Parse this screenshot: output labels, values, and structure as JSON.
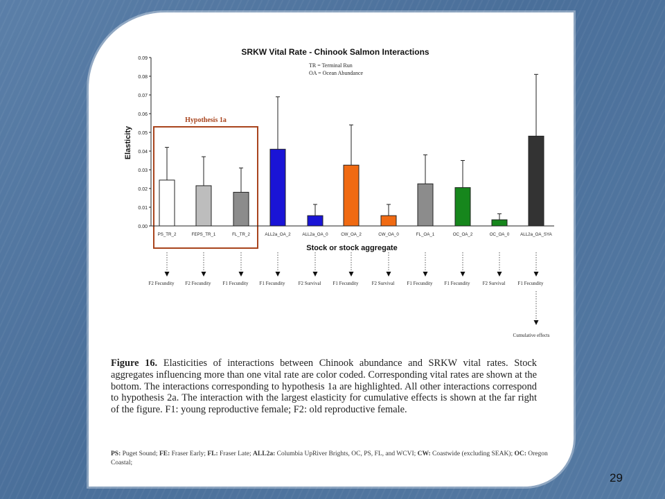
{
  "slide": {
    "number": "29"
  },
  "chart_data": {
    "type": "bar",
    "title": "SRKW Vital Rate - Chinook Salmon Interactions",
    "legend_notes": [
      "TR = Terminal Run",
      "OA = Ocean Abundance"
    ],
    "xlabel": "Stock or stock aggregate",
    "ylabel": "Elasticity",
    "ylim": [
      0,
      0.09
    ],
    "yticks": [
      "0.00",
      "0.01",
      "0.02",
      "0.03",
      "0.04",
      "0.05",
      "0.06",
      "0.07",
      "0.08",
      "0.09"
    ],
    "categories": [
      "PS_TR_2",
      "FEPS_TR_1",
      "FL_TR_2",
      "ALL2a_OA_2",
      "ALL2a_OA_0",
      "CW_OA_2",
      "CW_OA_0",
      "FL_OA_1",
      "OC_OA_2",
      "OC_OA_0",
      "ALL2a_OA_SYA"
    ],
    "values": [
      0.0245,
      0.0215,
      0.018,
      0.041,
      0.0055,
      0.0325,
      0.0055,
      0.0225,
      0.0205,
      0.0033,
      0.048
    ],
    "error_upper": [
      0.042,
      0.037,
      0.031,
      0.069,
      0.0115,
      0.054,
      0.0115,
      0.038,
      0.035,
      0.0065,
      0.081
    ],
    "bar_colors": [
      "#ffffff",
      "#bdbdbd",
      "#8c8c8c",
      "#1a14d6",
      "#1a14d6",
      "#f06a12",
      "#f06a12",
      "#8c8c8c",
      "#16861c",
      "#16861c",
      "#333333"
    ],
    "vital_rates": [
      "F2 Fecundity",
      "F2 Fecundity",
      "F1 Fecundity",
      "F1 Fecundity",
      "F2 Survival",
      "F1 Fecundity",
      "F2 Survival",
      "F1 Fecundity",
      "F1 Fecundity",
      "F2 Survival",
      "F1 Fecundity"
    ],
    "hypothesis_box_label": "Hypothesis 1a",
    "cumulative_label": "Cumulative effects",
    "grid": false
  },
  "caption": {
    "figure_label": "Figure 16.",
    "text": "Elasticities of interactions between Chinook abundance and SRKW vital rates. Stock aggregates influencing more than one vital rate are color coded. Corresponding vital rates are shown at the bottom. The interactions corresponding to hypothesis 1a are highlighted. All other interactions correspond to hypothesis 2a. The interaction with the largest elasticity for cumulative effects is shown at the far right of the figure. F1: young reproductive female; F2: old reproductive female."
  },
  "footnote": {
    "ps_key": "PS:",
    "ps_val": "Puget Sound;",
    "fe_key": "FE:",
    "fe_val": "Fraser Early;",
    "fl_key": "FL:",
    "fl_val": "Fraser Late;",
    "all_key": "ALL2a:",
    "all_val": "Columbia UpRiver Brights, OC, PS, FL, and WCVI;",
    "cw_key": "CW:",
    "cw_val": "Coastwide (excluding SEAK);",
    "oc_key": "OC:",
    "oc_val": "Oregon Coastal;"
  }
}
